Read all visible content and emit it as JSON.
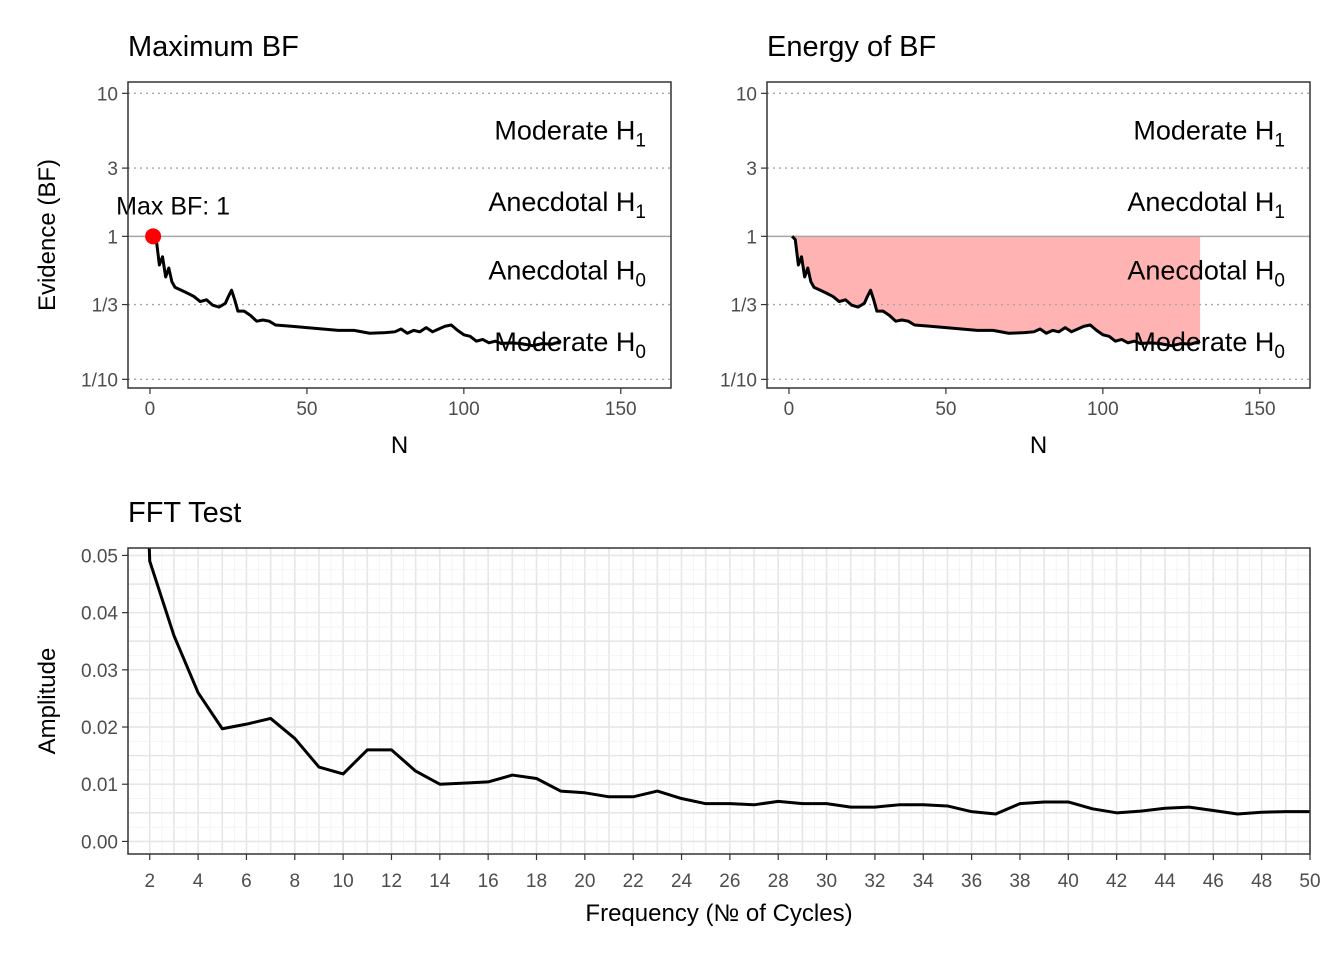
{
  "colors": {
    "line": "#000000",
    "panel_border": "#333333",
    "guide_dotted": "#a6a6a6",
    "one_line": "#a6a6a6",
    "max_point": "#ff0000",
    "energy_fill": "#ffb3b3",
    "grid_major": "#e6e6e6",
    "grid_minor": "#f2f2f2"
  },
  "chart_data": [
    {
      "type": "line",
      "title": "Maximum BF",
      "xlabel": "N",
      "ylabel": "Evidence (BF)",
      "y_scale": "log",
      "xlim": [
        -7,
        166
      ],
      "ylim": [
        0.087,
        12
      ],
      "x_ticks": [
        "0",
        "50",
        "100",
        "150"
      ],
      "y_ticks": [
        "10",
        "3",
        "1",
        "1/3",
        "1/10"
      ],
      "guides": [
        10,
        3,
        0.3333,
        0.1
      ],
      "reference_line": 1,
      "zones": [
        "Moderate H1",
        "Anecdotal H1",
        "Anecdotal H0",
        "Moderate H0"
      ],
      "annotation": "Max BF: 1",
      "max_point": {
        "x": 1,
        "y": 1
      },
      "series": [
        {
          "x": [
            1,
            2,
            3,
            4,
            5,
            6,
            7,
            8,
            10,
            12,
            14,
            16,
            18,
            20,
            22,
            24,
            25,
            26,
            27,
            28,
            30,
            32,
            34,
            36,
            38,
            40,
            45,
            50,
            55,
            60,
            65,
            70,
            75,
            78,
            80,
            82,
            84,
            86,
            88,
            90,
            92,
            94,
            96,
            98,
            100,
            102,
            104,
            106,
            108,
            110,
            112,
            115,
            118,
            120,
            122,
            125,
            128,
            131
          ],
          "y": [
            1.0,
            0.95,
            0.63,
            0.72,
            0.52,
            0.6,
            0.48,
            0.44,
            0.42,
            0.4,
            0.38,
            0.35,
            0.36,
            0.33,
            0.32,
            0.34,
            0.38,
            0.42,
            0.36,
            0.3,
            0.3,
            0.28,
            0.255,
            0.26,
            0.255,
            0.24,
            0.235,
            0.23,
            0.225,
            0.22,
            0.22,
            0.21,
            0.212,
            0.215,
            0.225,
            0.21,
            0.22,
            0.215,
            0.23,
            0.215,
            0.225,
            0.235,
            0.24,
            0.22,
            0.205,
            0.2,
            0.185,
            0.19,
            0.18,
            0.185,
            0.178,
            0.18,
            0.178,
            0.175,
            0.172,
            0.178,
            0.176,
            0.185
          ]
        }
      ]
    },
    {
      "type": "area",
      "title": "Energy of BF",
      "xlabel": "N",
      "ylabel": "",
      "y_scale": "log",
      "xlim": [
        -7,
        166
      ],
      "ylim": [
        0.087,
        12
      ],
      "x_ticks": [
        "0",
        "50",
        "100",
        "150"
      ],
      "y_ticks": [
        "10",
        "3",
        "1",
        "1/3",
        "1/10"
      ],
      "guides": [
        10,
        3,
        0.3333,
        0.1
      ],
      "reference_line": 1,
      "zones": [
        "Moderate H1",
        "Anecdotal H1",
        "Anecdotal H0",
        "Moderate H0"
      ],
      "fill_between": "BF curve and BF = 1",
      "series": [
        {
          "x": [
            1,
            2,
            3,
            4,
            5,
            6,
            7,
            8,
            10,
            12,
            14,
            16,
            18,
            20,
            22,
            24,
            25,
            26,
            27,
            28,
            30,
            32,
            34,
            36,
            38,
            40,
            45,
            50,
            55,
            60,
            65,
            70,
            75,
            78,
            80,
            82,
            84,
            86,
            88,
            90,
            92,
            94,
            96,
            98,
            100,
            102,
            104,
            106,
            108,
            110,
            112,
            115,
            118,
            120,
            122,
            125,
            128,
            131
          ],
          "y": [
            1.0,
            0.95,
            0.63,
            0.72,
            0.52,
            0.6,
            0.48,
            0.44,
            0.42,
            0.4,
            0.38,
            0.35,
            0.36,
            0.33,
            0.32,
            0.34,
            0.38,
            0.42,
            0.36,
            0.3,
            0.3,
            0.28,
            0.255,
            0.26,
            0.255,
            0.24,
            0.235,
            0.23,
            0.225,
            0.22,
            0.22,
            0.21,
            0.212,
            0.215,
            0.225,
            0.21,
            0.22,
            0.215,
            0.23,
            0.215,
            0.225,
            0.235,
            0.24,
            0.22,
            0.205,
            0.2,
            0.185,
            0.19,
            0.18,
            0.185,
            0.178,
            0.18,
            0.178,
            0.175,
            0.172,
            0.178,
            0.176,
            0.185
          ]
        }
      ]
    },
    {
      "type": "line",
      "title": "FFT Test",
      "xlabel": "Frequency (№ of Cycles)",
      "ylabel": "Amplitude",
      "xlim": [
        1.1,
        50
      ],
      "ylim": [
        -0.0022,
        0.0513
      ],
      "x_ticks": [
        "2",
        "4",
        "6",
        "8",
        "10",
        "12",
        "14",
        "16",
        "18",
        "20",
        "22",
        "24",
        "26",
        "28",
        "30",
        "32",
        "34",
        "36",
        "38",
        "40",
        "42",
        "44",
        "46",
        "48",
        "50"
      ],
      "y_ticks": [
        "0.00",
        "0.01",
        "0.02",
        "0.03",
        "0.04",
        "0.05"
      ],
      "grid": true,
      "series": [
        {
          "x": [
            1.98,
            2,
            3,
            4,
            5,
            6,
            7,
            8,
            9,
            10,
            11,
            12,
            13,
            14,
            15,
            16,
            17,
            18,
            19,
            20,
            21,
            22,
            23,
            24,
            25,
            26,
            27,
            28,
            29,
            30,
            31,
            32,
            33,
            34,
            35,
            36,
            37,
            38,
            39,
            40,
            41,
            42,
            43,
            44,
            45,
            46,
            47,
            48,
            49,
            50
          ],
          "y": [
            0.0513,
            0.049,
            0.036,
            0.026,
            0.0197,
            0.0205,
            0.0215,
            0.018,
            0.013,
            0.0118,
            0.016,
            0.016,
            0.0123,
            0.01,
            0.0102,
            0.0104,
            0.0116,
            0.011,
            0.0088,
            0.0085,
            0.0078,
            0.0078,
            0.0088,
            0.0075,
            0.0066,
            0.0066,
            0.0064,
            0.007,
            0.0066,
            0.0066,
            0.006,
            0.006,
            0.0064,
            0.0064,
            0.0062,
            0.0052,
            0.0048,
            0.0066,
            0.0069,
            0.0069,
            0.0057,
            0.005,
            0.0053,
            0.0058,
            0.006,
            0.0054,
            0.0048,
            0.0051,
            0.0052,
            0.0052
          ]
        }
      ]
    }
  ]
}
